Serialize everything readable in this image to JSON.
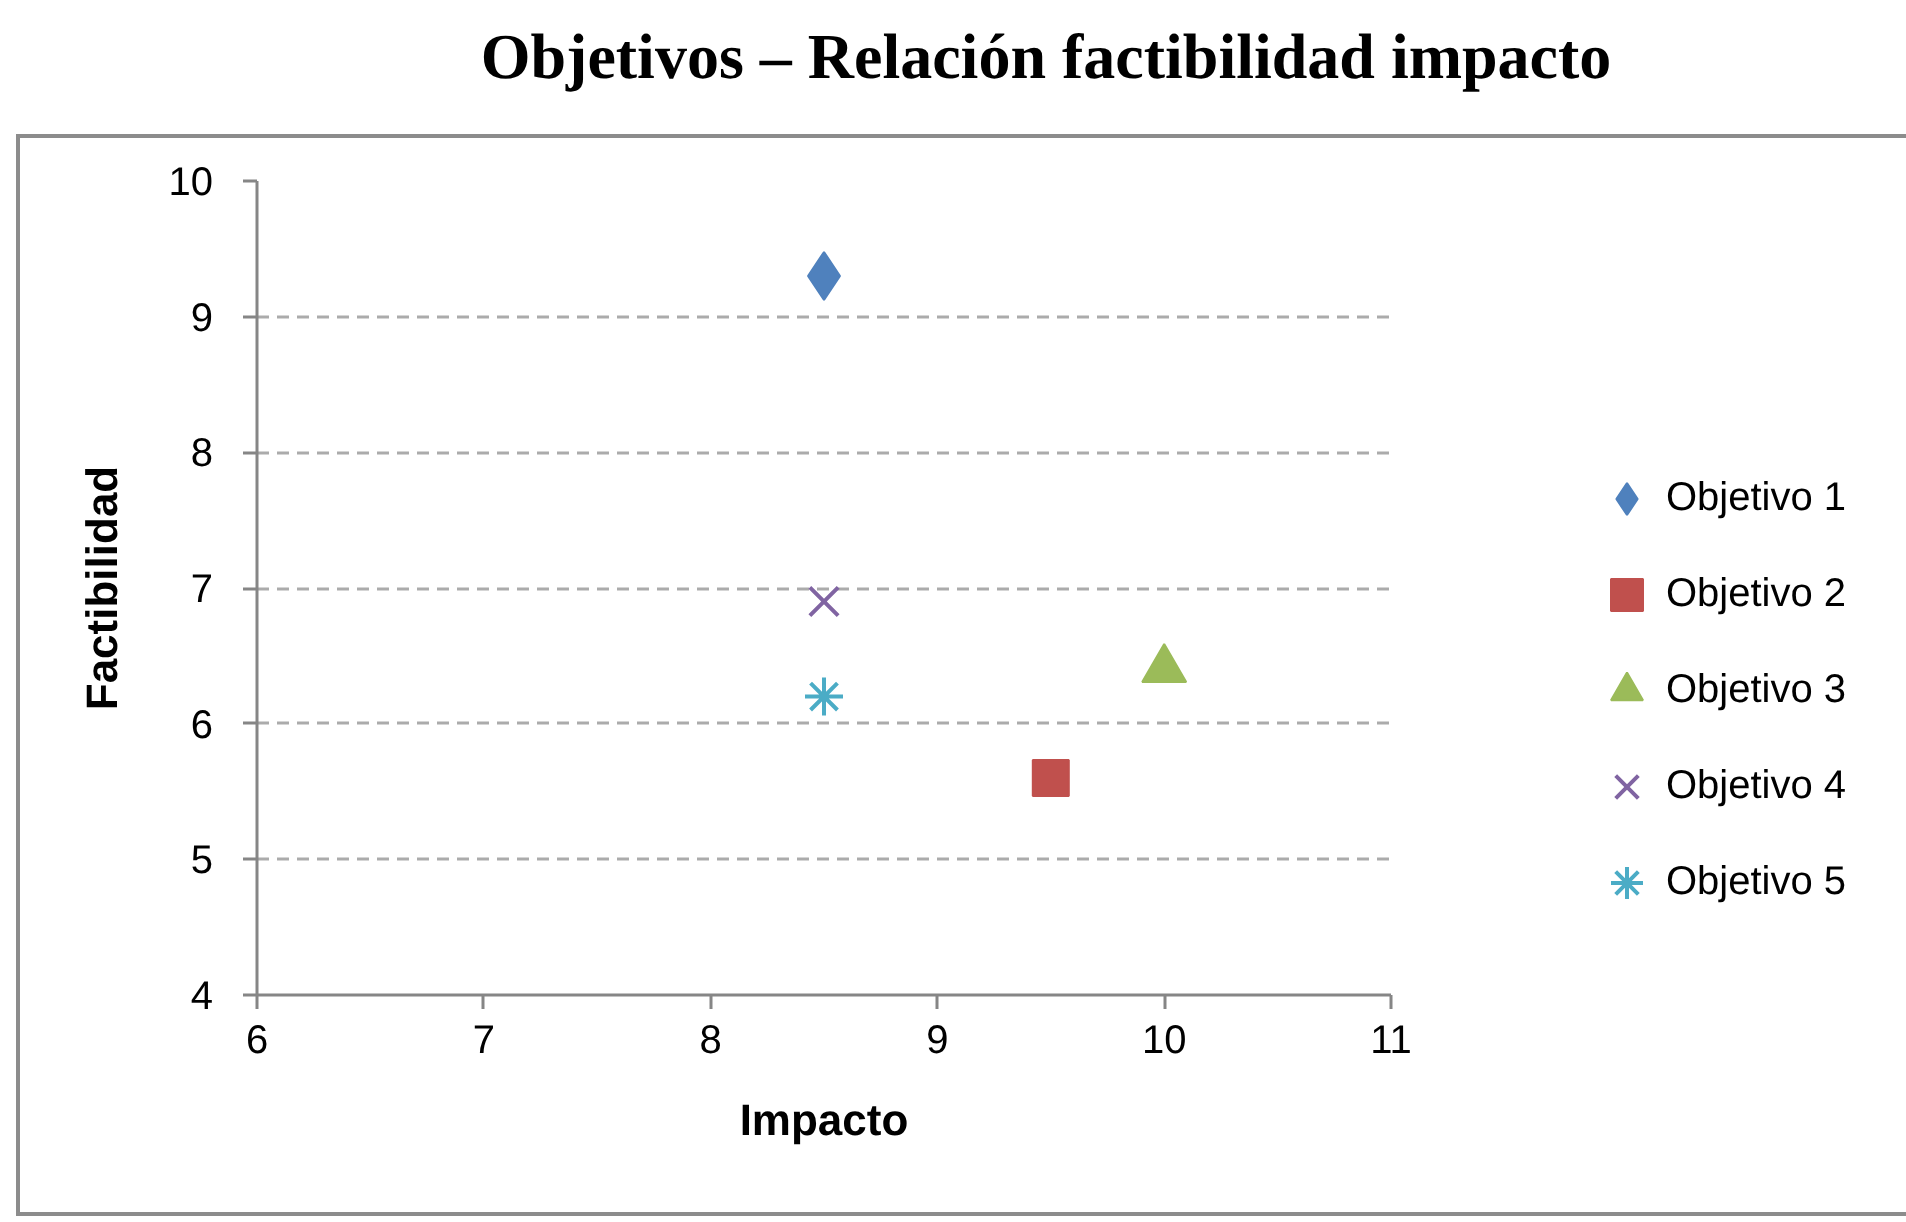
{
  "chart_data": {
    "type": "scatter",
    "title": "Objetivos – Relación factibilidad impacto",
    "xlabel": "Impacto",
    "ylabel": "Factibilidad",
    "xlim": [
      6,
      11
    ],
    "ylim": [
      4,
      10
    ],
    "xticks": [
      6,
      7,
      8,
      9,
      10,
      11
    ],
    "yticks": [
      4,
      5,
      6,
      7,
      8,
      9,
      10
    ],
    "grid": "y",
    "legend": "right",
    "series": [
      {
        "name": "Objetivo 1",
        "color": "#4f81bd",
        "marker": "diamond",
        "x": [
          8.5
        ],
        "values": [
          9.3
        ]
      },
      {
        "name": "Objetivo 2",
        "color": "#c0504d",
        "marker": "square",
        "x": [
          9.5
        ],
        "values": [
          5.6
        ]
      },
      {
        "name": "Objetivo 3",
        "color": "#9bbb59",
        "marker": "triangle",
        "x": [
          10
        ],
        "values": [
          6.4
        ]
      },
      {
        "name": "Objetivo 4",
        "color": "#8064a2",
        "marker": "cross",
        "x": [
          8.5
        ],
        "values": [
          6.9
        ]
      },
      {
        "name": "Objetivo 5",
        "color": "#4bacc6",
        "x": [
          8.5
        ],
        "values": [
          6.2
        ]
      }
    ]
  }
}
